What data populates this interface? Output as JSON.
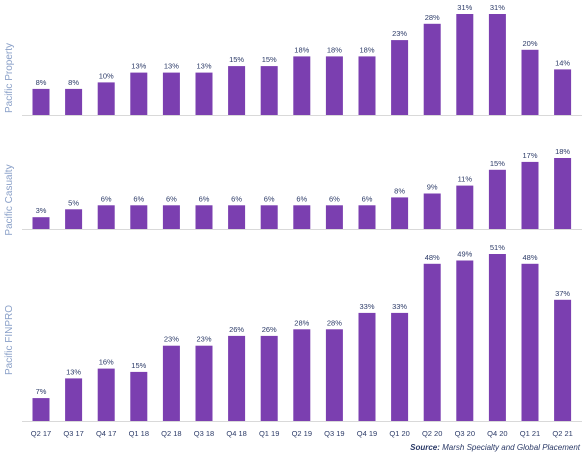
{
  "chart_data": {
    "type": "bar",
    "categories": [
      "Q2 17",
      "Q3 17",
      "Q4 17",
      "Q1 18",
      "Q2 18",
      "Q3 18",
      "Q4 18",
      "Q1 19",
      "Q2 19",
      "Q3 19",
      "Q4 19",
      "Q1 20",
      "Q2 20",
      "Q3 20",
      "Q4 20",
      "Q1 21",
      "Q2 21"
    ],
    "panels": [
      {
        "name": "Pacific Property",
        "values": [
          8,
          8,
          10,
          13,
          13,
          13,
          15,
          15,
          18,
          18,
          18,
          23,
          28,
          31,
          31,
          20,
          14
        ],
        "labels": [
          "8%",
          "8%",
          "10%",
          "13%",
          "13%",
          "13%",
          "15%",
          "15%",
          "18%",
          "18%",
          "18%",
          "23%",
          "28%",
          "31%",
          "31%",
          "20%",
          "14%"
        ]
      },
      {
        "name": "Pacific Casualty",
        "values": [
          3,
          5,
          6,
          6,
          6,
          null,
          6,
          6,
          6,
          6,
          6,
          8,
          9,
          11,
          15,
          17,
          18
        ],
        "labels": [
          "3%",
          "5%",
          "6%",
          "6%",
          "6%",
          "6%",
          "6%",
          "6%",
          "6%",
          "6%",
          "6%",
          "8%",
          "9%",
          "11%",
          "15%",
          "17%",
          "18%"
        ],
        "note": "Q3 18 bar in this panel is drawn at 6%"
      },
      {
        "name": "Pacific FINPRO",
        "values": [
          7,
          13,
          16,
          15,
          23,
          23,
          26,
          26,
          28,
          28,
          33,
          33,
          48,
          49,
          51,
          48,
          37
        ],
        "labels": [
          "7%",
          "13%",
          "16%",
          "15%",
          "23%",
          "23%",
          "26%",
          "26%",
          "28%",
          "28%",
          "33%",
          "33%",
          "48%",
          "49%",
          "51%",
          "48%",
          "37%"
        ]
      }
    ],
    "bar_color": "#7b3fb0",
    "grid": false,
    "legend": "none"
  },
  "source": {
    "prefix": "Source:",
    "text": " Marsh Specialty and Global Placement"
  }
}
